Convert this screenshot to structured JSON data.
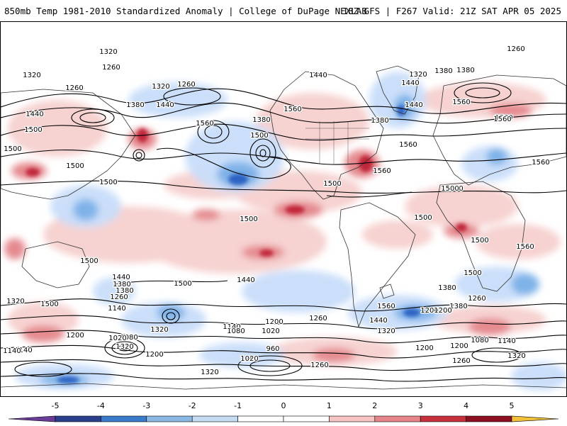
{
  "header": {
    "title_left": "850mb Temp 1981-2010 Standardized Anomaly | College of DuPage NEXLAB",
    "title_right": "18Z GFS | F267 Valid: 21Z SAT APR 05 2025"
  },
  "map": {
    "contour_labels": [
      "1320",
      "1260",
      "1320",
      "1260",
      "1440",
      "1320",
      "1440",
      "1260",
      "1320",
      "1380",
      "1500",
      "1380",
      "1560",
      "1500",
      "1500",
      "1380",
      "1500",
      "1440",
      "1440",
      "1380",
      "1560",
      "1260",
      "1380",
      "1440",
      "1560",
      "1500",
      "1500",
      "1560",
      "1500",
      "1500",
      "1500",
      "1500",
      "1500",
      "1500",
      "1560",
      "1440",
      "1500",
      "1320",
      "1500",
      "1380",
      "1440",
      "1260",
      "1380",
      "1140",
      "1080",
      "1020",
      "1200",
      "1320",
      "1320",
      "1140",
      "1200",
      "1260",
      "1080",
      "1200",
      "1020",
      "1020",
      "960",
      "1260",
      "1140",
      "1440",
      "1320",
      "1260",
      "1200",
      "1380",
      "1200",
      "1080",
      "1140",
      "1200",
      "1320",
      "1260",
      "1320",
      "1380",
      "1560",
      "1200",
      "1500",
      "1380",
      "1560",
      "1500",
      "1560",
      "1560",
      "1140"
    ],
    "anomaly_colors": {
      "strong_warm": "#c0283a",
      "moderate_warm": "#e58a8f",
      "weak_warm": "#f6d0cf",
      "weak_cold": "#c9defa",
      "moderate_cold": "#7fb3e8",
      "strong_cold": "#2f63c2"
    },
    "land_outline_color": "#333333",
    "contour_color": "#000000"
  },
  "colorbar": {
    "labels": [
      "-5",
      "-4",
      "-3",
      "-2",
      "-1",
      "0",
      "1",
      "2",
      "3",
      "4",
      "5"
    ],
    "colors": [
      "#6a3d9a",
      "#2b3f8c",
      "#3a7cc9",
      "#8bb8e3",
      "#c4dbf2",
      "#ffffff",
      "#ffffff",
      "#f6c4c2",
      "#e6858a",
      "#c8303c",
      "#8c0f22",
      "#f2c13a"
    ]
  }
}
